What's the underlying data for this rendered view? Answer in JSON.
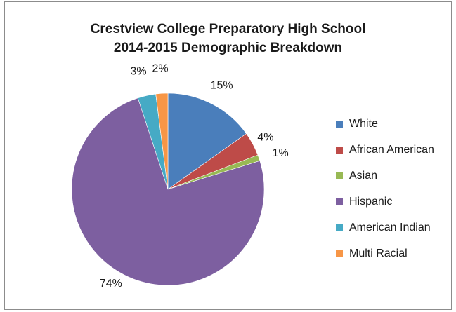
{
  "chart_data": {
    "type": "pie",
    "title_line1": "Crestview College Preparatory High School",
    "title_line2": "2014-2015 Demographic Breakdown",
    "categories": [
      "White",
      "African American",
      "Asian",
      "Hispanic",
      "American Indian",
      "Multi Racial"
    ],
    "values": [
      15,
      4,
      1,
      74,
      3,
      2
    ],
    "labels": [
      "15%",
      "4%",
      "1%",
      "74%",
      "3%",
      "2%"
    ],
    "colors": [
      "#4a7ebb",
      "#be4b48",
      "#98b954",
      "#7d5fa0",
      "#46aac5",
      "#f79646"
    ],
    "legend_position": "right"
  }
}
